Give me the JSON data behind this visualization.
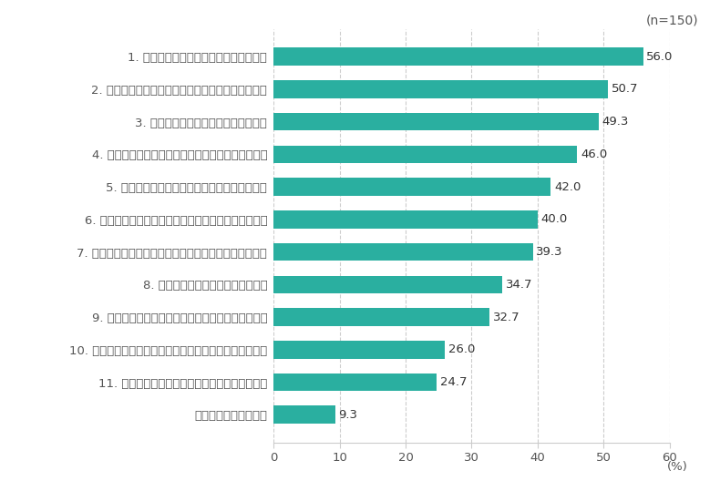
{
  "categories": [
    "1. メンバーの育成・能力開発をすること",
    "2. 既存業務に取り組みつつ、新しい挑戦を行うこと",
    "3. 自部署の業績・目標を達成すること",
    "4. 効率化のために仕事の進め方などを改善すること",
    "5. メンバーの仕事に向けたやる気を高めること",
    "6. メンバーの心身のコンディションのケアをすること",
    "7. 組織全体で取り組むべきことを問題提起していくこと",
    "8. 職場のチームワークを高めること",
    "9. 他部署や社外と関係を作り、連携を促進すること",
    "10. メンバーの希望するキャリアや働き方を実現すること",
    "11. コンプライアンスや労務管理を徹底すること",
    "あてはまるものはない"
  ],
  "values": [
    56.0,
    50.7,
    49.3,
    46.0,
    42.0,
    40.0,
    39.3,
    34.7,
    32.7,
    26.0,
    24.7,
    9.3
  ],
  "bar_color": "#2aafa0",
  "label_color": "#555555",
  "value_color": "#333333",
  "background_color": "#ffffff",
  "grid_color": "#cccccc",
  "n_label": "(n=150)",
  "xlabel": "(%)",
  "xlim": [
    0,
    60
  ],
  "xticks": [
    0,
    10,
    20,
    30,
    40,
    50,
    60
  ],
  "bar_height": 0.55,
  "title_fontsize": 10,
  "label_fontsize": 9.5,
  "value_fontsize": 9.5,
  "tick_fontsize": 9.5
}
